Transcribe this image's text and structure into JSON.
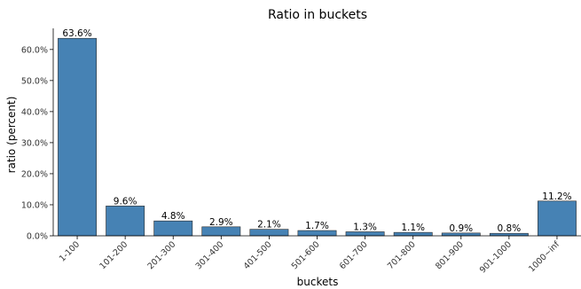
{
  "chart_data": {
    "type": "bar",
    "title": "Ratio in buckets",
    "xlabel": "buckets",
    "ylabel": "ratio (percent)",
    "categories": [
      "1-100",
      "101-200",
      "201-300",
      "301-400",
      "401-500",
      "501-600",
      "601-700",
      "701-800",
      "801-900",
      "901-1000",
      "1000~inf"
    ],
    "values": [
      63.6,
      9.6,
      4.8,
      2.9,
      2.1,
      1.7,
      1.3,
      1.1,
      0.9,
      0.8,
      11.2
    ],
    "data_labels": [
      "63.6%",
      "9.6%",
      "4.8%",
      "2.9%",
      "2.1%",
      "1.7%",
      "1.3%",
      "1.1%",
      "0.9%",
      "0.8%",
      "11.2%"
    ],
    "yticks": [
      0,
      10,
      20,
      30,
      40,
      50,
      60
    ],
    "ytick_labels": [
      "0.0%",
      "10.0%",
      "20.0%",
      "30.0%",
      "40.0%",
      "50.0%",
      "60.0%"
    ],
    "ylim": [
      0,
      66.8
    ],
    "grid": false,
    "legend": "none",
    "bar_color": "#4682b4"
  }
}
